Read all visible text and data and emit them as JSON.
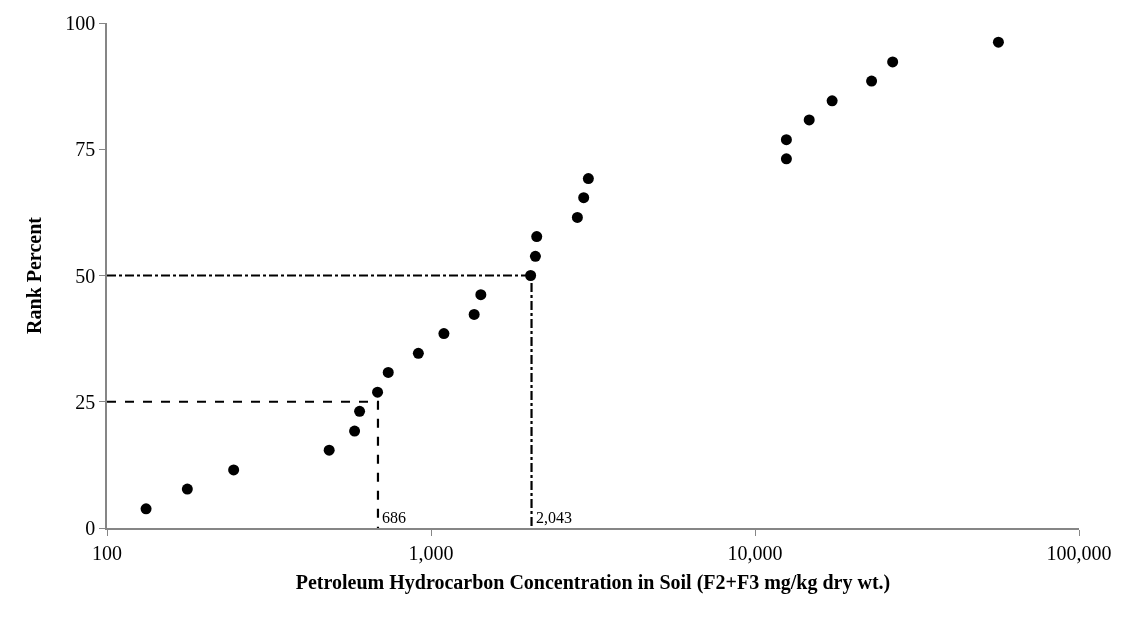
{
  "chart_data": {
    "type": "scatter",
    "xlabel": "Petroleum Hydrocarbon Concentration in Soil (F2+F3 mg/kg dry wt.)",
    "ylabel": "Rank Percent",
    "log": "x",
    "xlim": [
      100,
      100000
    ],
    "xticks": [
      {
        "value": 100,
        "label": "100"
      },
      {
        "value": 1000,
        "label": "1,000"
      },
      {
        "value": 10000,
        "label": "10,000"
      },
      {
        "value": 100000,
        "label": "100,000"
      }
    ],
    "ylim": [
      0,
      100
    ],
    "yticks": [
      0,
      25,
      50,
      75,
      100
    ],
    "marker": "circle",
    "series": [
      {
        "color": "#000000",
        "x": [
          132,
          177,
          246,
          485,
          581,
          602,
          684,
          738,
          914,
          1096,
          1359,
          1425,
          2030,
          2100,
          2120,
          2830,
          2960,
          3060,
          12500,
          12500,
          14700,
          17300,
          22900,
          26600,
          56400
        ],
        "values": [
          3.8,
          7.7,
          11.5,
          15.4,
          19.2,
          23.1,
          26.9,
          30.8,
          34.6,
          38.5,
          42.3,
          46.2,
          50.0,
          53.8,
          57.7,
          61.5,
          65.4,
          69.2,
          73.1,
          76.9,
          80.8,
          84.6,
          88.5,
          92.3,
          96.2
        ]
      },
      {
        "type": "line",
        "color": "#000000",
        "line_style": "dashed",
        "marker": "none",
        "x": [
          100,
          686,
          686
        ],
        "values": [
          25,
          25,
          0
        ]
      },
      {
        "type": "line",
        "color": "#000000",
        "line_style": "dashdot",
        "marker": "none",
        "x": [
          100,
          2043,
          2043
        ],
        "values": [
          50,
          50,
          0
        ]
      }
    ],
    "annotations": [
      {
        "text": "686",
        "x": 686,
        "y": 0
      },
      {
        "text": "2,043",
        "x": 2043,
        "y": 0
      }
    ]
  }
}
